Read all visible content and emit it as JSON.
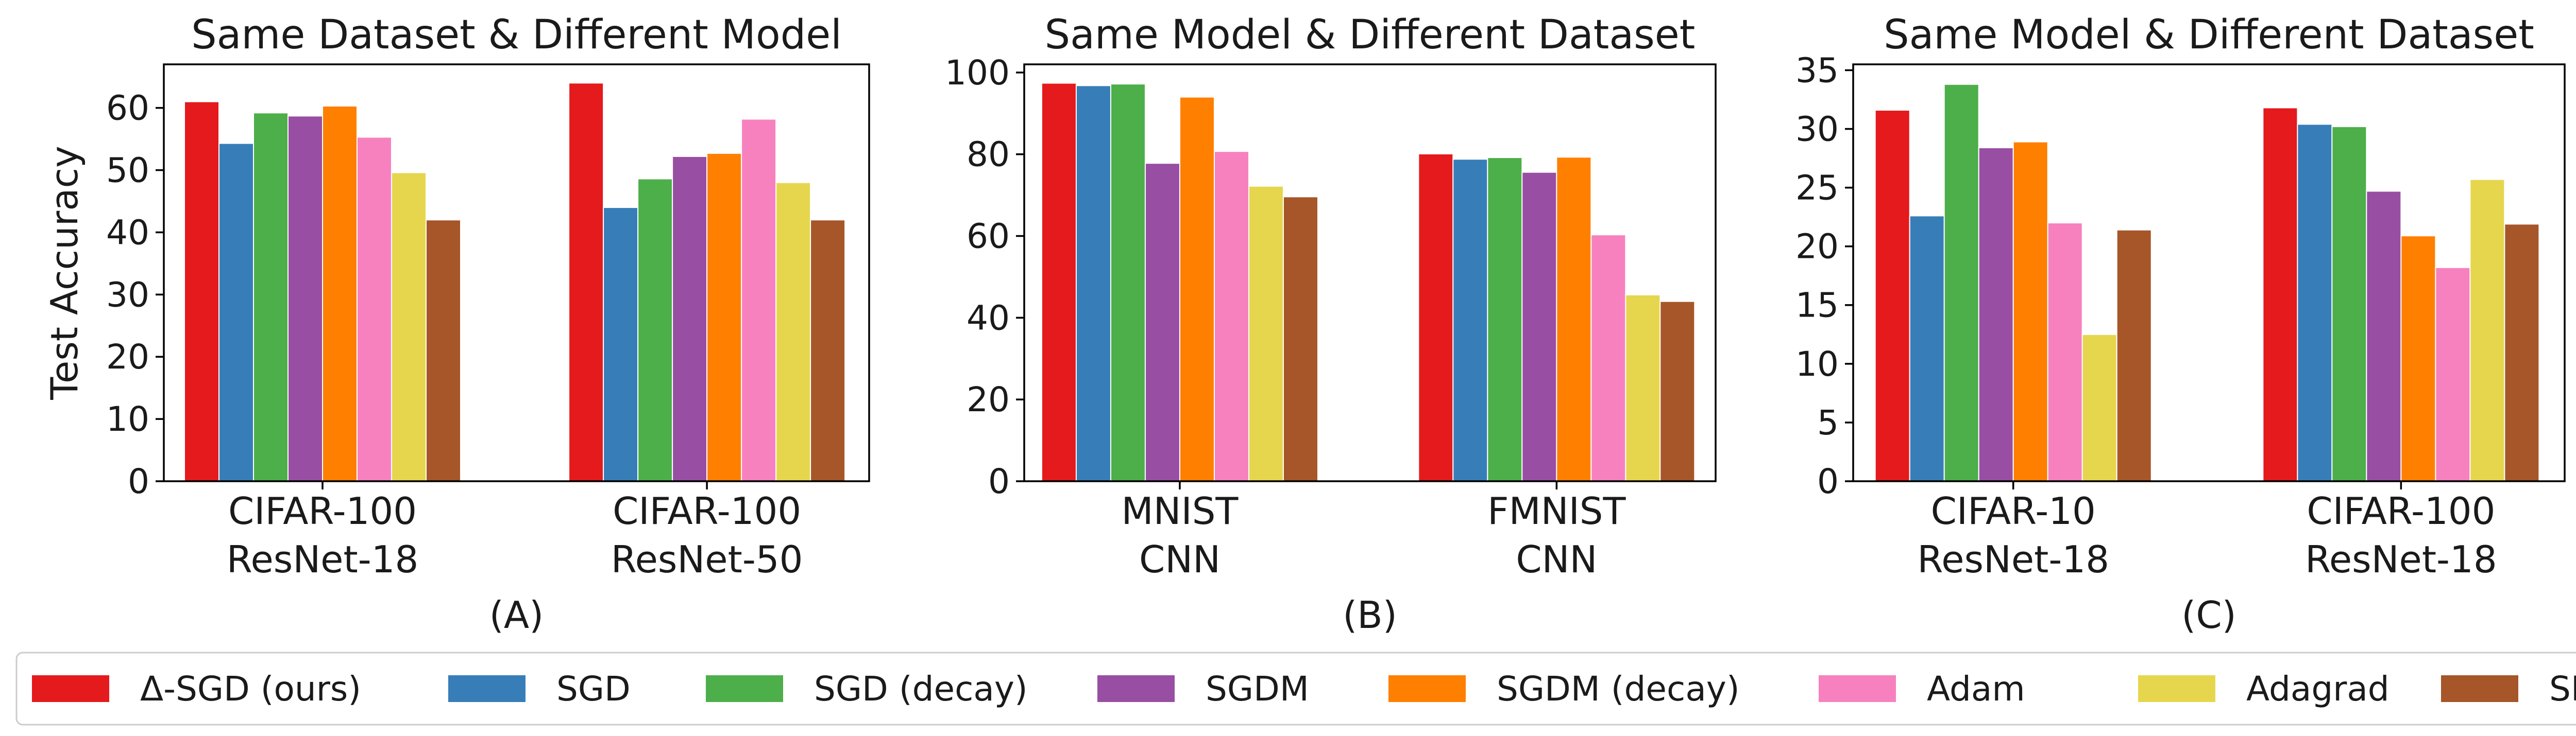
{
  "legend": [
    {
      "name": "Δ-SGD (ours)",
      "color": "#e41a1c"
    },
    {
      "name": "SGD",
      "color": "#377eb8"
    },
    {
      "name": "SGD (decay)",
      "color": "#4daf4a"
    },
    {
      "name": "SGDM",
      "color": "#984ea3"
    },
    {
      "name": "SGDM (decay)",
      "color": "#ff7f00"
    },
    {
      "name": "Adam",
      "color": "#f781bf"
    },
    {
      "name": "Adagrad",
      "color": "#e6d64e"
    },
    {
      "name": "SPS",
      "color": "#a65628"
    }
  ],
  "chart_data": [
    {
      "type": "bar",
      "title": "Same Dataset & Different Model",
      "panel_label": "(A)",
      "ylabel": "Test Accuracy",
      "xlabel": "",
      "ylim": [
        0,
        67
      ],
      "yticks": [
        0,
        10,
        20,
        30,
        40,
        50,
        60
      ],
      "categories": [
        [
          "CIFAR-100",
          "ResNet-18"
        ],
        [
          "CIFAR-100",
          "ResNet-50"
        ]
      ],
      "series": [
        {
          "name": "Δ-SGD (ours)",
          "values": [
            61.0,
            64.0
          ]
        },
        {
          "name": "SGD",
          "values": [
            54.3,
            44.0
          ]
        },
        {
          "name": "SGD (decay)",
          "values": [
            59.2,
            48.6
          ]
        },
        {
          "name": "SGDM",
          "values": [
            58.7,
            52.2
          ]
        },
        {
          "name": "SGDM (decay)",
          "values": [
            60.3,
            52.7
          ]
        },
        {
          "name": "Adam",
          "values": [
            55.3,
            58.2
          ]
        },
        {
          "name": "Adagrad",
          "values": [
            49.6,
            48.0
          ]
        },
        {
          "name": "SPS",
          "values": [
            42.0,
            42.0
          ]
        }
      ]
    },
    {
      "type": "bar",
      "title": "Same Model & Different Dataset",
      "panel_label": "(B)",
      "ylabel": "",
      "xlabel": "",
      "ylim": [
        0,
        102
      ],
      "yticks": [
        0,
        20,
        40,
        60,
        80,
        100
      ],
      "categories": [
        [
          "MNIST",
          "CNN"
        ],
        [
          "FMNIST",
          "CNN"
        ]
      ],
      "series": [
        {
          "name": "Δ-SGD (ours)",
          "values": [
            97.4,
            80.1
          ]
        },
        {
          "name": "SGD",
          "values": [
            96.8,
            78.8
          ]
        },
        {
          "name": "SGD (decay)",
          "values": [
            97.2,
            79.2
          ]
        },
        {
          "name": "SGDM",
          "values": [
            77.8,
            75.6
          ]
        },
        {
          "name": "SGDM (decay)",
          "values": [
            94.0,
            79.3
          ]
        },
        {
          "name": "Adam",
          "values": [
            80.7,
            60.3
          ]
        },
        {
          "name": "Adagrad",
          "values": [
            72.2,
            45.6
          ]
        },
        {
          "name": "SPS",
          "values": [
            69.6,
            44.0
          ]
        }
      ]
    },
    {
      "type": "bar",
      "title": "Same Model & Different Dataset",
      "panel_label": "(C)",
      "ylabel": "",
      "xlabel": "",
      "ylim": [
        0,
        35.5
      ],
      "yticks": [
        0,
        5,
        10,
        15,
        20,
        25,
        30,
        35
      ],
      "categories": [
        [
          "CIFAR-10",
          "ResNet-18"
        ],
        [
          "CIFAR-100",
          "ResNet-18"
        ]
      ],
      "series": [
        {
          "name": "Δ-SGD (ours)",
          "values": [
            31.6,
            31.8
          ]
        },
        {
          "name": "SGD",
          "values": [
            22.6,
            30.4
          ]
        },
        {
          "name": "SGD (decay)",
          "values": [
            33.8,
            30.2
          ]
        },
        {
          "name": "SGDM",
          "values": [
            28.4,
            24.7
          ]
        },
        {
          "name": "SGDM (decay)",
          "values": [
            28.9,
            20.9
          ]
        },
        {
          "name": "Adam",
          "values": [
            22.0,
            18.2
          ]
        },
        {
          "name": "Adagrad",
          "values": [
            12.5,
            25.7
          ]
        },
        {
          "name": "SPS",
          "values": [
            21.4,
            21.9
          ]
        }
      ]
    }
  ]
}
